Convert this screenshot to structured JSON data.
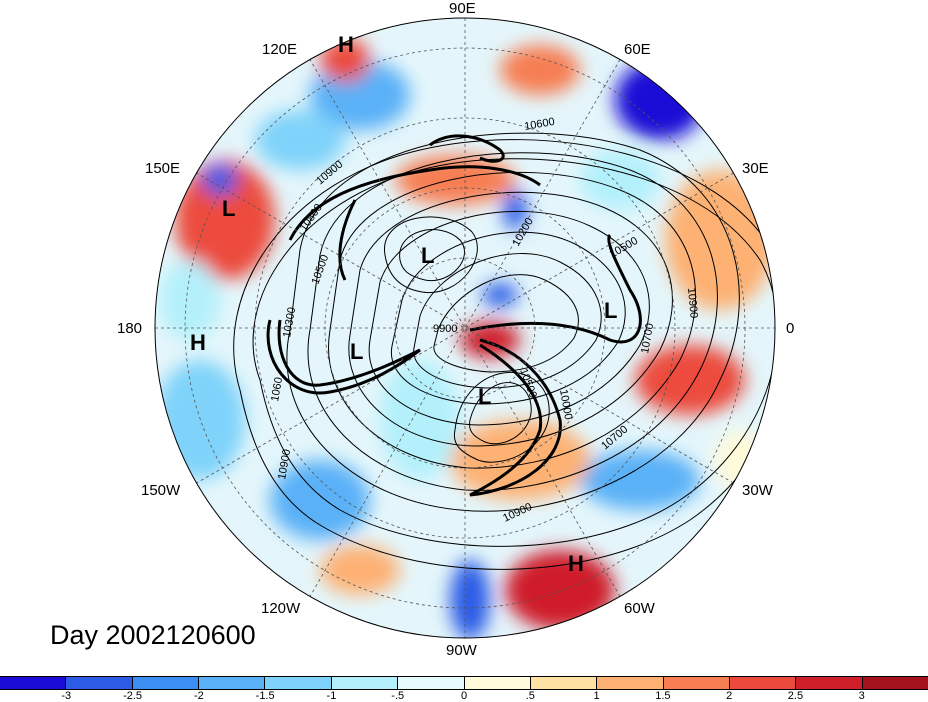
{
  "map": {
    "title": "Day 2002120600",
    "longitude_labels": [
      {
        "id": "lon-90e",
        "text": "90E"
      },
      {
        "id": "lon-60e",
        "text": "60E"
      },
      {
        "id": "lon-30e",
        "text": "30E"
      },
      {
        "id": "lon-0",
        "text": "0"
      },
      {
        "id": "lon-30w",
        "text": "30W"
      },
      {
        "id": "lon-60w",
        "text": "60W"
      },
      {
        "id": "lon-90w",
        "text": "90W"
      },
      {
        "id": "lon-120w",
        "text": "120W"
      },
      {
        "id": "lon-150w",
        "text": "150W"
      },
      {
        "id": "lon-180",
        "text": "180"
      },
      {
        "id": "lon-150e",
        "text": "150E"
      },
      {
        "id": "lon-120e",
        "text": "120E"
      }
    ],
    "pressure_centers": [
      {
        "id": "h-120e",
        "text": "H"
      },
      {
        "id": "l-150e",
        "text": "L"
      },
      {
        "id": "h-180",
        "text": "H"
      },
      {
        "id": "l-siberia",
        "text": "L"
      },
      {
        "id": "l-alaska",
        "text": "L"
      },
      {
        "id": "l-canada",
        "text": "L"
      },
      {
        "id": "l-europe",
        "text": "L"
      },
      {
        "id": "h-samerica",
        "text": "H"
      }
    ],
    "contour_labels": [
      {
        "id": "c-10600",
        "text": "10600"
      },
      {
        "id": "c-10900-a",
        "text": "10900"
      },
      {
        "id": "c-10800",
        "text": "10800"
      },
      {
        "id": "c-10500-a",
        "text": "10500"
      },
      {
        "id": "c-10300",
        "text": "10300"
      },
      {
        "id": "c-10200",
        "text": "10200"
      },
      {
        "id": "c-10500-b",
        "text": "10500"
      },
      {
        "id": "c-10900-b",
        "text": "10900"
      },
      {
        "id": "c-10700-a",
        "text": "10700"
      },
      {
        "id": "c-9900",
        "text": "9900"
      },
      {
        "id": "c-10500-c",
        "text": "10500"
      },
      {
        "id": "c-10000",
        "text": "10000"
      },
      {
        "id": "c-10700-b",
        "text": "10700"
      },
      {
        "id": "c-10900-c",
        "text": "10900"
      },
      {
        "id": "c-10900-d",
        "text": "10900"
      },
      {
        "id": "c-10600-b",
        "text": "1060"
      }
    ],
    "colorbar": {
      "colors": [
        "#1a0bd6",
        "#2c5be6",
        "#3c8ef2",
        "#5ab1f7",
        "#7fd3fa",
        "#b3f0fb",
        "#e7fbfd",
        "#fffad9",
        "#ffe2a3",
        "#fdb173",
        "#f77e53",
        "#ec4b3c",
        "#cf1f2b",
        "#a3121d"
      ],
      "ticks": [
        "-3",
        "-2.5",
        "-2",
        "-1.5",
        "-1",
        "-.5",
        "0",
        ".5",
        "1",
        "1.5",
        "2",
        "2.5",
        "3"
      ]
    }
  }
}
